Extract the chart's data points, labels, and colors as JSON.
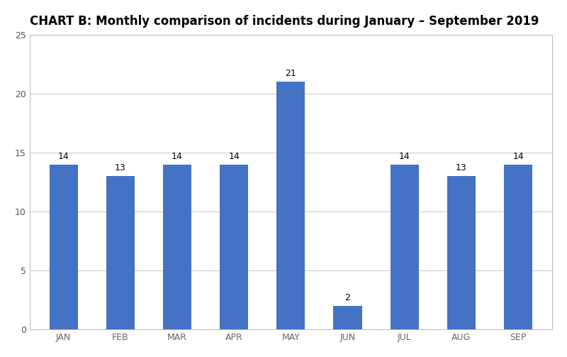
{
  "title": "CHART B: Monthly comparison of incidents during January – September 2019",
  "categories": [
    "JAN",
    "FEB",
    "MAR",
    "APR",
    "MAY",
    "JUN",
    "JUL",
    "AUG",
    "SEP"
  ],
  "values": [
    14,
    13,
    14,
    14,
    21,
    2,
    14,
    13,
    14
  ],
  "bar_color": "#4472C4",
  "ylim": [
    0,
    25
  ],
  "yticks": [
    0,
    5,
    10,
    15,
    20,
    25
  ],
  "background_color": "#ffffff",
  "plot_bg_color": "#ffffff",
  "title_fontsize": 12,
  "tick_fontsize": 9,
  "label_fontsize": 9,
  "bar_width": 0.5,
  "grid_color": "#d0d0d0",
  "spine_color": "#c0c0c0"
}
